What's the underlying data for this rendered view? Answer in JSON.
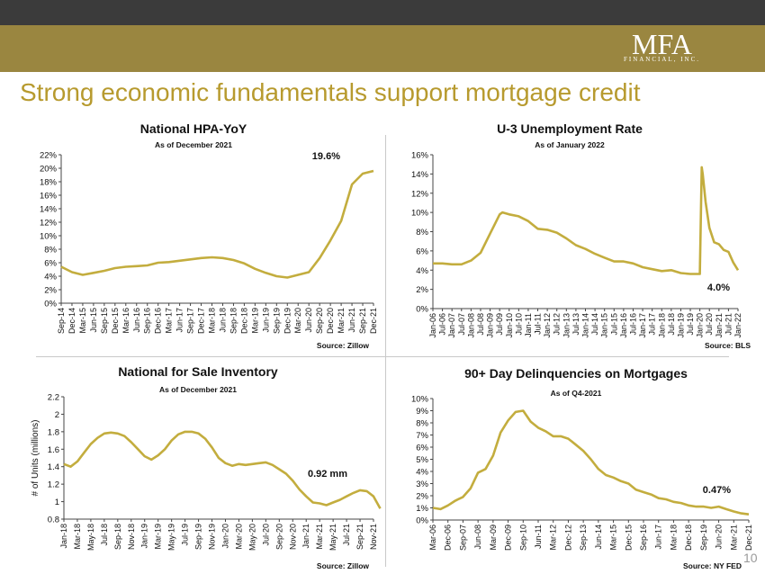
{
  "header": {
    "logo_text": "MFA",
    "logo_sub": "FINANCIAL, INC.",
    "title": "Strong economic fundamentals support mortgage credit",
    "page_number": "10"
  },
  "colors": {
    "line": "#c3ad3e",
    "gold_band": "#9a8640",
    "top_band": "#3b3b3b",
    "title": "#b79a2e"
  },
  "chart_data": [
    {
      "id": "hpa",
      "type": "line",
      "title": "National HPA-YoY",
      "subtitle": "As of December 2021",
      "source": "Source: Zillow",
      "annotation": "19.6%",
      "ylabel": "",
      "ylim": [
        0,
        22
      ],
      "yticks": [
        0,
        2,
        4,
        6,
        8,
        10,
        12,
        14,
        16,
        18,
        20,
        22
      ],
      "ytick_labels": [
        "0%",
        "2%",
        "4%",
        "6%",
        "8%",
        "10%",
        "12%",
        "14%",
        "16%",
        "18%",
        "20%",
        "22%"
      ],
      "xtick_labels": [
        "Sep-14",
        "Dec-14",
        "Mar-15",
        "Jun-15",
        "Sep-15",
        "Dec-15",
        "Mar-16",
        "Jun-16",
        "Sep-16",
        "Dec-16",
        "Mar-17",
        "Jun-17",
        "Sep-17",
        "Dec-17",
        "Mar-18",
        "Jun-18",
        "Sep-18",
        "Dec-18",
        "Mar-19",
        "Jun-19",
        "Sep-19",
        "Dec-19",
        "Mar-20",
        "Jun-20",
        "Sep-20",
        "Dec-20",
        "Mar-21",
        "Jun-21",
        "Sep-21",
        "Dec-21"
      ],
      "x": [
        0,
        1,
        2,
        3,
        4,
        5,
        6,
        7,
        8,
        9,
        10,
        11,
        12,
        13,
        14,
        15,
        16,
        17,
        18,
        19,
        20,
        21,
        22,
        23,
        24,
        25,
        26,
        27,
        28,
        29
      ],
      "values": [
        5.4,
        4.6,
        4.2,
        4.5,
        4.8,
        5.2,
        5.4,
        5.5,
        5.6,
        6.0,
        6.1,
        6.3,
        6.5,
        6.7,
        6.8,
        6.7,
        6.4,
        5.9,
        5.1,
        4.5,
        4.0,
        3.8,
        4.2,
        4.6,
        6.7,
        9.3,
        12.2,
        17.6,
        19.2,
        19.6
      ]
    },
    {
      "id": "unemp",
      "type": "line",
      "title": "U-3 Unemployment Rate",
      "subtitle": "As of January 2022",
      "source": "Source: BLS",
      "annotation": "4.0%",
      "ylabel": "",
      "ylim": [
        0,
        16
      ],
      "yticks": [
        0,
        2,
        4,
        6,
        8,
        10,
        12,
        14,
        16
      ],
      "ytick_labels": [
        "0%",
        "2%",
        "4%",
        "6%",
        "8%",
        "10%",
        "12%",
        "14%",
        "16%"
      ],
      "xtick_labels": [
        "Jan-06",
        "Jul-06",
        "Jan-07",
        "Jul-07",
        "Jan-08",
        "Jul-08",
        "Jan-09",
        "Jul-09",
        "Jan-10",
        "Jul-10",
        "Jan-11",
        "Jul-11",
        "Jan-12",
        "Jul-12",
        "Jan-13",
        "Jul-13",
        "Jan-14",
        "Jul-14",
        "Jan-15",
        "Jul-15",
        "Jan-16",
        "Jul-16",
        "Jan-17",
        "Jul-17",
        "Jan-18",
        "Jul-18",
        "Jan-19",
        "Jul-19",
        "Jan-20",
        "Jul-20",
        "Jan-21",
        "Jul-21",
        "Jan-22"
      ],
      "x": [
        0,
        1,
        2,
        3,
        4,
        5,
        6,
        7,
        7.3,
        8,
        9,
        10,
        11,
        12,
        13,
        14,
        15,
        16,
        17,
        18,
        19,
        20,
        21,
        22,
        23,
        24,
        25,
        26,
        27,
        28,
        28.2,
        28.3,
        28.6,
        29,
        29.5,
        30,
        30.5,
        31,
        31.5,
        32
      ],
      "values": [
        4.7,
        4.7,
        4.6,
        4.6,
        5.0,
        5.8,
        7.8,
        9.8,
        10.0,
        9.8,
        9.6,
        9.1,
        8.3,
        8.2,
        7.9,
        7.3,
        6.6,
        6.2,
        5.7,
        5.3,
        4.9,
        4.9,
        4.7,
        4.3,
        4.1,
        3.9,
        4.0,
        3.7,
        3.6,
        3.6,
        14.7,
        14.0,
        11.1,
        8.4,
        6.9,
        6.7,
        6.1,
        5.9,
        4.8,
        4.0
      ]
    },
    {
      "id": "inventory",
      "type": "line",
      "title": "National for Sale Inventory",
      "subtitle": "As of December 2021",
      "source": "Source: Zillow",
      "annotation": "0.92 mm",
      "ylabel": "# of Units (millions)",
      "ylim": [
        0.8,
        2.2
      ],
      "yticks": [
        0.8,
        1.0,
        1.2,
        1.4,
        1.6,
        1.8,
        2.0,
        2.2
      ],
      "ytick_labels": [
        "0.8",
        "1",
        "1.2",
        "1.4",
        "1.6",
        "1.8",
        "2",
        "2.2"
      ],
      "xtick_labels": [
        "Jan-18",
        "Mar-18",
        "May-18",
        "Jul-18",
        "Sep-18",
        "Nov-18",
        "Jan-19",
        "Mar-19",
        "May-19",
        "Jul-19",
        "Sep-19",
        "Nov-19",
        "Jan-20",
        "Mar-20",
        "May-20",
        "Jul-20",
        "Sep-20",
        "Nov-20",
        "Jan-21",
        "Mar-21",
        "May-21",
        "Jul-21",
        "Sep-21",
        "Nov-21"
      ],
      "x": [
        0,
        0.5,
        1,
        1.5,
        2,
        2.5,
        3,
        3.5,
        4,
        4.5,
        5,
        5.5,
        6,
        6.5,
        7,
        7.5,
        8,
        8.5,
        9,
        9.5,
        10,
        10.5,
        11,
        11.5,
        12,
        12.5,
        13,
        13.5,
        14,
        14.5,
        15,
        15.5,
        16,
        16.5,
        17,
        17.5,
        18,
        18.5,
        19,
        19.5,
        20,
        20.5,
        21,
        21.5,
        22,
        22.5,
        23,
        23.5
      ],
      "values": [
        1.43,
        1.4,
        1.46,
        1.56,
        1.66,
        1.73,
        1.78,
        1.79,
        1.78,
        1.75,
        1.68,
        1.6,
        1.52,
        1.48,
        1.53,
        1.6,
        1.7,
        1.77,
        1.8,
        1.8,
        1.78,
        1.72,
        1.62,
        1.5,
        1.44,
        1.41,
        1.43,
        1.42,
        1.43,
        1.44,
        1.45,
        1.42,
        1.37,
        1.32,
        1.24,
        1.14,
        1.06,
        0.99,
        0.98,
        0.96,
        0.99,
        1.02,
        1.06,
        1.1,
        1.13,
        1.12,
        1.06,
        0.92
      ]
    },
    {
      "id": "delinq",
      "type": "line",
      "title": "90+ Day Delinquencies on Mortgages",
      "subtitle": "As of Q4-2021",
      "source": "Source: NY FED",
      "annotation": "0.47%",
      "ylabel": "",
      "ylim": [
        0,
        10
      ],
      "yticks": [
        0,
        1,
        2,
        3,
        4,
        5,
        6,
        7,
        8,
        9,
        10
      ],
      "ytick_labels": [
        "0%",
        "1%",
        "2%",
        "3%",
        "4%",
        "5%",
        "6%",
        "7%",
        "8%",
        "9%",
        "10%"
      ],
      "xtick_labels": [
        "Mar-06",
        "Dec-06",
        "Sep-07",
        "Jun-08",
        "Mar-09",
        "Dec-09",
        "Sep-10",
        "Jun-11",
        "Mar-12",
        "Dec-12",
        "Sep-13",
        "Jun-14",
        "Mar-15",
        "Dec-15",
        "Sep-16",
        "Jun-17",
        "Mar-18",
        "Dec-18",
        "Sep-19",
        "Jun-20",
        "Mar-21",
        "Dec-21"
      ],
      "x": [
        0,
        0.5,
        1,
        1.5,
        2,
        2.5,
        3,
        3.5,
        4,
        4.5,
        5,
        5.5,
        6,
        6.5,
        7,
        7.5,
        8,
        8.5,
        9,
        9.5,
        10,
        10.5,
        11,
        11.5,
        12,
        12.5,
        13,
        13.5,
        14,
        14.5,
        15,
        15.5,
        16,
        16.5,
        17,
        17.5,
        18,
        18.5,
        19,
        19.5,
        20,
        20.5,
        21
      ],
      "values": [
        1.0,
        0.9,
        1.2,
        1.6,
        1.9,
        2.6,
        3.9,
        4.2,
        5.3,
        7.2,
        8.2,
        8.9,
        9.0,
        8.1,
        7.6,
        7.3,
        6.9,
        6.9,
        6.7,
        6.2,
        5.7,
        5.0,
        4.2,
        3.7,
        3.5,
        3.2,
        3.0,
        2.5,
        2.3,
        2.1,
        1.8,
        1.7,
        1.5,
        1.4,
        1.2,
        1.1,
        1.1,
        1.0,
        1.1,
        0.9,
        0.7,
        0.55,
        0.47
      ]
    }
  ]
}
